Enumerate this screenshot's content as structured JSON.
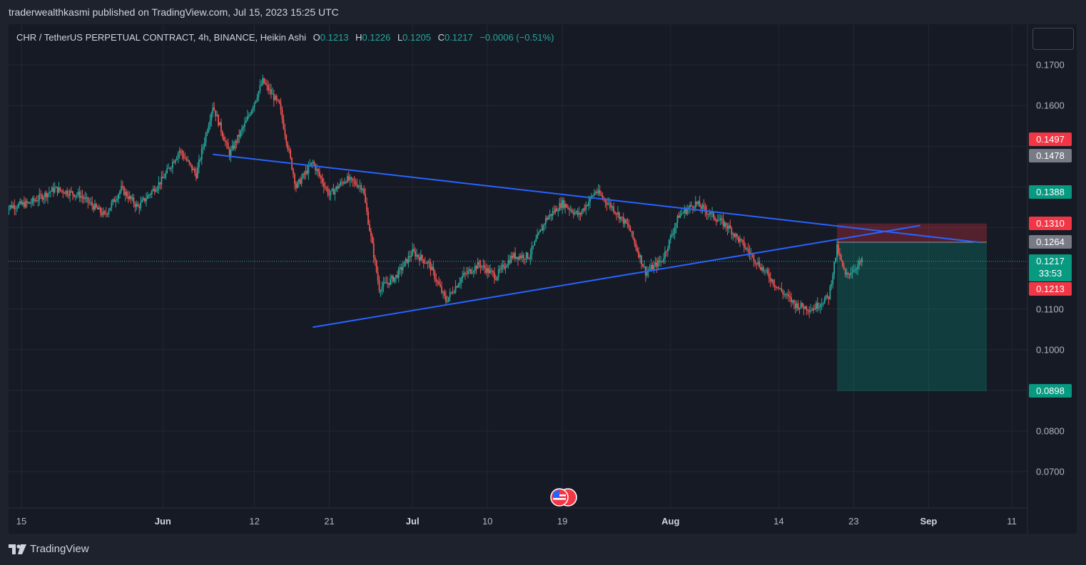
{
  "header": {
    "published_by": "traderwealthkasmi published on TradingView.com, Jul 15, 2023 15:25 UTC"
  },
  "legend": {
    "symbol": "CHR / TetherUS PERPETUAL CONTRACT, 4h, BINANCE, Heikin Ashi",
    "o_key": "O",
    "o_val": "0.1213",
    "h_key": "H",
    "h_val": "0.1226",
    "l_key": "L",
    "l_val": "0.1205",
    "c_key": "C",
    "c_val": "0.1217",
    "change": "−0.0006 (−0.51%)"
  },
  "price_tags": {
    "t1497": "0.1497",
    "t1478": "0.1478",
    "t1388": "0.1388",
    "t1310": "0.1310",
    "t1264": "0.1264",
    "current": "0.1217",
    "countdown": "33:53",
    "t1213": "0.1213",
    "t0898": "0.0898"
  },
  "footer": {
    "brand": "TradingView"
  },
  "colors": {
    "up": "#26a69a",
    "down": "#ef5350",
    "trendline": "#2962ff",
    "tag_red": "#f23645",
    "tag_gray": "#787b86",
    "tag_green": "#089981"
  },
  "chart_data": {
    "type": "candlestick",
    "symbol": "CHR / TetherUS PERPETUAL CONTRACT",
    "interval": "4h",
    "style": "Heikin Ashi",
    "ylim": [
      0.0625,
      0.18
    ],
    "y_ticks": [
      "0.1700",
      "0.1600",
      "0.1100",
      "0.1000",
      "0.0800",
      "0.0700"
    ],
    "x_ticks": [
      {
        "label": "15",
        "date": "2023-05-15",
        "bold": false
      },
      {
        "label": "Jun",
        "date": "2023-06-01",
        "bold": true
      },
      {
        "label": "12",
        "date": "2023-06-12",
        "bold": false
      },
      {
        "label": "21",
        "date": "2023-06-21",
        "bold": false
      },
      {
        "label": "Jul",
        "date": "2023-07-01",
        "bold": true
      },
      {
        "label": "10",
        "date": "2023-07-10",
        "bold": false
      },
      {
        "label": "19",
        "date": "2023-07-19",
        "bold": false
      },
      {
        "label": "Aug",
        "date": "2023-08-01",
        "bold": true
      },
      {
        "label": "14",
        "date": "2023-08-14",
        "bold": false
      },
      {
        "label": "23",
        "date": "2023-08-23",
        "bold": false
      },
      {
        "label": "Sep",
        "date": "2023-09-01",
        "bold": true
      },
      {
        "label": "11",
        "date": "2023-09-11",
        "bold": false
      }
    ],
    "price_path": [
      [
        "2023-05-13",
        0.135
      ],
      [
        "2023-05-16",
        0.136
      ],
      [
        "2023-05-19",
        0.1395
      ],
      [
        "2023-05-22",
        0.138
      ],
      [
        "2023-05-25",
        0.133
      ],
      [
        "2023-05-27",
        0.1395
      ],
      [
        "2023-05-29",
        0.135
      ],
      [
        "2023-06-01",
        0.142
      ],
      [
        "2023-06-03",
        0.149
      ],
      [
        "2023-06-05",
        0.143
      ],
      [
        "2023-06-07",
        0.16
      ],
      [
        "2023-06-09",
        0.148
      ],
      [
        "2023-06-11",
        0.156
      ],
      [
        "2023-06-13",
        0.166
      ],
      [
        "2023-06-15",
        0.16
      ],
      [
        "2023-06-17",
        0.14
      ],
      [
        "2023-06-19",
        0.146
      ],
      [
        "2023-06-21",
        0.138
      ],
      [
        "2023-06-23",
        0.142
      ],
      [
        "2023-06-25",
        0.14
      ],
      [
        "2023-06-27",
        0.115
      ],
      [
        "2023-06-29",
        0.118
      ],
      [
        "2023-07-01",
        0.124
      ],
      [
        "2023-07-03",
        0.121
      ],
      [
        "2023-07-05",
        0.112
      ],
      [
        "2023-07-07",
        0.118
      ],
      [
        "2023-07-09",
        0.121
      ],
      [
        "2023-07-11",
        0.118
      ],
      [
        "2023-07-13",
        0.123
      ],
      [
        "2023-07-15",
        0.123
      ],
      [
        "2023-07-17",
        0.132
      ],
      [
        "2023-07-19",
        0.136
      ],
      [
        "2023-07-21",
        0.133
      ],
      [
        "2023-07-23",
        0.139
      ],
      [
        "2023-07-25",
        0.135
      ],
      [
        "2023-07-27",
        0.13
      ],
      [
        "2023-07-29",
        0.119
      ],
      [
        "2023-07-31",
        0.122
      ],
      [
        "2023-08-02",
        0.133
      ],
      [
        "2023-08-04",
        0.136
      ],
      [
        "2023-08-06",
        0.133
      ],
      [
        "2023-08-08",
        0.13
      ],
      [
        "2023-08-10",
        0.125
      ],
      [
        "2023-08-12",
        0.12
      ],
      [
        "2023-08-14",
        0.115
      ],
      [
        "2023-08-16",
        0.111
      ],
      [
        "2023-08-18",
        0.11
      ],
      [
        "2023-08-20",
        0.113
      ],
      [
        "2023-08-21",
        0.125
      ],
      [
        "2023-08-22",
        0.118
      ],
      [
        "2023-08-24",
        0.1217
      ]
    ],
    "trendlines": [
      {
        "name": "descending",
        "from": [
          "2023-06-07",
          0.148
        ],
        "to": [
          "2023-09-07",
          0.1264
        ]
      },
      {
        "name": "ascending",
        "from": [
          "2023-06-19",
          0.1055
        ],
        "to": [
          "2023-08-31",
          0.1305
        ]
      }
    ],
    "short_position": {
      "start": "2023-08-21",
      "end": "2023-09-08",
      "entry": 0.1264,
      "stop": 0.131,
      "target": 0.0898
    },
    "last_price": 0.1217
  }
}
